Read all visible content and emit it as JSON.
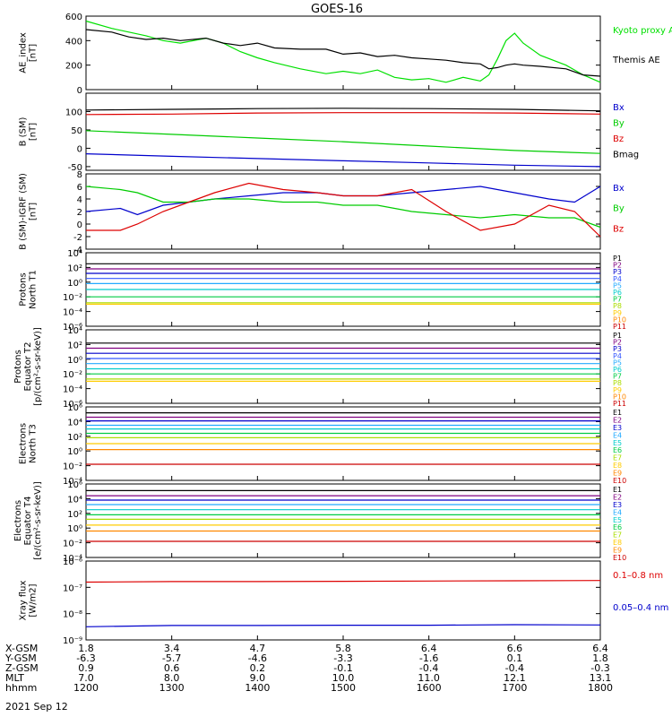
{
  "title": "GOES-16",
  "date": "2021 Sep 12",
  "orbit_table": {
    "row_labels": [
      "X-GSM",
      "Y-GSM",
      "Z-GSM",
      "MLT",
      "hhmm"
    ],
    "columns": [
      [
        "1.8",
        "-6.3",
        "0.9",
        "7.0",
        "1200"
      ],
      [
        "3.4",
        "-5.7",
        "0.6",
        "8.0",
        "1300"
      ],
      [
        "4.7",
        "-4.6",
        "0.2",
        "9.0",
        "1400"
      ],
      [
        "5.8",
        "-3.3",
        "-0.1",
        "10.0",
        "1500"
      ],
      [
        "6.4",
        "-1.6",
        "-0.4",
        "11.0",
        "1600"
      ],
      [
        "6.6",
        "0.1",
        "-0.4",
        "12.1",
        "1700"
      ],
      [
        "6.4",
        "1.8",
        "-0.3",
        "13.1",
        "1800"
      ]
    ]
  },
  "chart_data": [
    {
      "type": "line",
      "panel": "AE index",
      "ylabel": [
        "AE_index",
        "[nT]"
      ],
      "ylim": [
        0,
        600
      ],
      "yticks": [
        "0",
        "200",
        "400",
        "600"
      ],
      "x_range_hours": [
        12,
        18
      ],
      "series": [
        {
          "name": "Kyoto proxy AE",
          "color": "#00e000",
          "x": [
            12.0,
            12.3,
            12.5,
            12.7,
            12.9,
            13.1,
            13.4,
            13.6,
            13.8,
            14.0,
            14.2,
            14.5,
            14.8,
            15.0,
            15.2,
            15.4,
            15.6,
            15.8,
            16.0,
            16.2,
            16.4,
            16.6,
            16.7,
            16.8,
            16.9,
            17.0,
            17.1,
            17.3,
            17.6,
            17.8,
            18.0
          ],
          "y": [
            560,
            500,
            470,
            440,
            400,
            380,
            420,
            380,
            310,
            260,
            220,
            170,
            130,
            150,
            130,
            160,
            100,
            80,
            90,
            60,
            100,
            70,
            120,
            250,
            400,
            460,
            380,
            280,
            200,
            120,
            60
          ]
        },
        {
          "name": "Themis AE",
          "color": "#000000",
          "x": [
            12.0,
            12.3,
            12.5,
            12.7,
            12.9,
            13.1,
            13.4,
            13.6,
            13.8,
            14.0,
            14.2,
            14.5,
            14.8,
            15.0,
            15.2,
            15.4,
            15.6,
            15.8,
            16.0,
            16.2,
            16.4,
            16.6,
            16.7,
            16.8,
            16.9,
            17.0,
            17.1,
            17.3,
            17.6,
            17.8,
            18.0
          ],
          "y": [
            490,
            470,
            430,
            410,
            420,
            400,
            420,
            380,
            360,
            380,
            340,
            330,
            330,
            290,
            300,
            270,
            280,
            260,
            250,
            240,
            220,
            210,
            170,
            180,
            200,
            210,
            200,
            190,
            170,
            120,
            110
          ]
        }
      ]
    },
    {
      "type": "line",
      "panel": "B (SM)",
      "ylabel": [
        "B (SM)",
        "[nT]"
      ],
      "ylim": [
        -60,
        150
      ],
      "yticks": [
        "-50",
        "0",
        "50",
        "100"
      ],
      "x_range_hours": [
        12,
        18
      ],
      "series": [
        {
          "name": "Bx",
          "color": "#0000cc",
          "x": [
            12,
            13,
            14,
            15,
            16,
            17,
            18
          ],
          "y": [
            -15,
            -22,
            -28,
            -34,
            -40,
            -46,
            -50
          ]
        },
        {
          "name": "By",
          "color": "#00cc00",
          "x": [
            12,
            13,
            14,
            15,
            16,
            17,
            18
          ],
          "y": [
            48,
            38,
            28,
            18,
            6,
            -6,
            -14
          ]
        },
        {
          "name": "Bz",
          "color": "#dd0000",
          "x": [
            12,
            13,
            14,
            15,
            16,
            17,
            18
          ],
          "y": [
            92,
            93,
            96,
            97,
            97,
            96,
            93
          ]
        },
        {
          "name": "Bmag",
          "color": "#000000",
          "x": [
            12,
            13,
            14,
            15,
            16,
            17,
            18
          ],
          "y": [
            104,
            106,
            108,
            109,
            108,
            106,
            102
          ]
        }
      ]
    },
    {
      "type": "line",
      "panel": "B (SM)-IGRF (SM)",
      "ylabel": [
        "B (SM)-IGRF (SM)",
        "[nT]"
      ],
      "ylim": [
        -4,
        8
      ],
      "yticks": [
        "-4",
        "-2",
        "0",
        "2",
        "4",
        "6",
        "8"
      ],
      "x_range_hours": [
        12,
        18
      ],
      "series": [
        {
          "name": "Bx",
          "color": "#0000cc",
          "x": [
            12.0,
            12.4,
            12.6,
            12.9,
            13.2,
            13.5,
            13.9,
            14.3,
            14.7,
            15.0,
            15.4,
            15.8,
            16.2,
            16.6,
            17.0,
            17.4,
            17.7,
            18.0
          ],
          "y": [
            2,
            2.5,
            1.5,
            3,
            3.5,
            4,
            4.5,
            5,
            5,
            4.5,
            4.5,
            5,
            5.5,
            6,
            5,
            4,
            3.5,
            6
          ]
        },
        {
          "name": "By",
          "color": "#00cc00",
          "x": [
            12.0,
            12.4,
            12.6,
            12.9,
            13.2,
            13.5,
            13.9,
            14.3,
            14.7,
            15.0,
            15.4,
            15.8,
            16.2,
            16.6,
            17.0,
            17.4,
            17.7,
            18.0
          ],
          "y": [
            6,
            5.5,
            5,
            3.5,
            3.5,
            4,
            4,
            3.5,
            3.5,
            3,
            3,
            2,
            1.5,
            1,
            1.5,
            1,
            1,
            -0.5
          ]
        },
        {
          "name": "Bz",
          "color": "#dd0000",
          "x": [
            12.0,
            12.4,
            12.6,
            12.9,
            13.2,
            13.5,
            13.9,
            14.3,
            14.7,
            15.0,
            15.4,
            15.8,
            16.2,
            16.6,
            17.0,
            17.4,
            17.7,
            18.0
          ],
          "y": [
            -1,
            -1,
            0,
            2,
            3.5,
            5,
            6.5,
            5.5,
            5,
            4.5,
            4.5,
            5.5,
            2,
            -1,
            0,
            3,
            2,
            -2
          ]
        }
      ]
    },
    {
      "type": "line",
      "panel": "Protons North T1",
      "ylabel": [
        "Protons",
        "North T1"
      ],
      "yscale": "log",
      "ylim": [
        1e-06,
        10000.0
      ],
      "yticks": [
        "10⁻⁶",
        "10⁻⁴",
        "10⁻²",
        "10⁰",
        "10²",
        "10⁴"
      ],
      "x_range_hours": [
        12,
        18
      ],
      "series": [
        {
          "name": "P1",
          "color": "#000000",
          "y_log10": [
            2.5,
            2.5,
            2.5,
            2.5,
            2.5,
            2.5,
            2.5
          ]
        },
        {
          "name": "P2",
          "color": "#800080",
          "y_log10": [
            1.8,
            1.8,
            1.8,
            1.8,
            1.8,
            1.8,
            1.8
          ]
        },
        {
          "name": "P3",
          "color": "#0000cc",
          "y_log10": [
            1.2,
            1.2,
            1.2,
            1.2,
            1.2,
            1.2,
            1.2
          ]
        },
        {
          "name": "P4",
          "color": "#3355ff",
          "y_log10": [
            0.5,
            0.5,
            0.5,
            0.5,
            0.5,
            0.5,
            0.5
          ]
        },
        {
          "name": "P5",
          "color": "#22aaff",
          "y_log10": [
            -0.2,
            -0.2,
            -0.2,
            -0.2,
            -0.2,
            -0.2,
            -0.2
          ]
        },
        {
          "name": "P6",
          "color": "#00cccc",
          "y_log10": [
            -1.0,
            -1.0,
            -1.0,
            -1.0,
            -1.0,
            -1.0,
            -1.0
          ]
        },
        {
          "name": "P7",
          "color": "#00cc44",
          "y_log10": [
            -2.0,
            -2.0,
            -2.0,
            -2.0,
            -2.0,
            -2.0,
            -2.0
          ]
        },
        {
          "name": "P8",
          "color": "#aadd00",
          "y_log10": [
            -2.8,
            -2.8,
            -2.8,
            -2.8,
            -2.8,
            -2.8,
            -2.8
          ]
        },
        {
          "name": "P9",
          "color": "#ffcc00",
          "y_log10": [
            -3.0,
            -3.0,
            -3.0,
            -3.0,
            -3.0,
            -3.0,
            -3.0
          ]
        },
        {
          "name": "P10",
          "color": "#ff8800",
          "y_log10": []
        },
        {
          "name": "P11",
          "color": "#cc0000",
          "y_log10": []
        }
      ]
    },
    {
      "type": "line",
      "panel": "Protons Equator T2",
      "ylabel": [
        "Protons",
        "Equator T2",
        "[p/(cm²-s-sr-keV)]"
      ],
      "yscale": "log",
      "ylim": [
        1e-06,
        10000.0
      ],
      "yticks": [
        "10⁻⁶",
        "10⁻⁴",
        "10⁻²",
        "10⁰",
        "10²",
        "10⁴"
      ],
      "x_range_hours": [
        12,
        18
      ],
      "series": [
        {
          "name": "P1",
          "color": "#000000",
          "y_log10": [
            2.2,
            2.2,
            2.2,
            2.2,
            2.2,
            2.2,
            2.2
          ]
        },
        {
          "name": "P2",
          "color": "#800080",
          "y_log10": [
            1.5,
            1.5,
            1.5,
            1.5,
            1.5,
            1.5,
            1.5
          ]
        },
        {
          "name": "P3",
          "color": "#0000cc",
          "y_log10": [
            0.8,
            0.8,
            0.8,
            0.8,
            0.8,
            0.8,
            0.8
          ]
        },
        {
          "name": "P4",
          "color": "#3355ff",
          "y_log10": [
            0.1,
            0.1,
            0.1,
            0.1,
            0.1,
            0.1,
            0.1
          ]
        },
        {
          "name": "P5",
          "color": "#22aaff",
          "y_log10": [
            -0.6,
            -0.6,
            -0.6,
            -0.6,
            -0.6,
            -0.6,
            -0.6
          ]
        },
        {
          "name": "P6",
          "color": "#00cccc",
          "y_log10": [
            -1.3,
            -1.3,
            -1.3,
            -1.3,
            -1.3,
            -1.3,
            -1.3
          ]
        },
        {
          "name": "P7",
          "color": "#00cc44",
          "y_log10": [
            -2.0,
            -2.0,
            -2.0,
            -2.0,
            -2.0,
            -2.0,
            -2.0
          ]
        },
        {
          "name": "P8",
          "color": "#aadd00",
          "y_log10": [
            -2.7,
            -2.7,
            -2.7,
            -2.7,
            -2.7,
            -2.7,
            -2.7
          ]
        },
        {
          "name": "P9",
          "color": "#ffcc00",
          "y_log10": [
            -3.0,
            -3.0,
            -3.0,
            -3.0,
            -3.0,
            -3.0,
            -3.0
          ]
        },
        {
          "name": "P10",
          "color": "#ff8800",
          "y_log10": []
        },
        {
          "name": "P11",
          "color": "#cc0000",
          "y_log10": []
        }
      ]
    },
    {
      "type": "line",
      "panel": "Electrons North T3",
      "ylabel": [
        "Electrons",
        "North T3"
      ],
      "yscale": "log",
      "ylim": [
        0.0001,
        1000000.0
      ],
      "yticks": [
        "10⁻⁴",
        "10⁻²",
        "10⁰",
        "10²",
        "10⁴",
        "10⁶"
      ],
      "x_range_hours": [
        12,
        18
      ],
      "series": [
        {
          "name": "E1",
          "color": "#000000",
          "y_log10": [
            5.2,
            5.2,
            5.2,
            5.2,
            5.2,
            5.2,
            5.2
          ]
        },
        {
          "name": "E2",
          "color": "#800080",
          "y_log10": [
            4.6,
            4.6,
            4.6,
            4.6,
            4.6,
            4.6,
            4.6
          ]
        },
        {
          "name": "E3",
          "color": "#0000cc",
          "y_log10": [
            4.1,
            4.1,
            4.1,
            4.1,
            4.1,
            4.1,
            4.1
          ]
        },
        {
          "name": "E4",
          "color": "#22aaff",
          "y_log10": [
            3.5,
            3.5,
            3.5,
            3.5,
            3.5,
            3.5,
            3.5
          ]
        },
        {
          "name": "E5",
          "color": "#00cccc",
          "y_log10": [
            3.0,
            3.0,
            3.0,
            3.0,
            3.0,
            3.0,
            3.0
          ]
        },
        {
          "name": "E6",
          "color": "#00cc44",
          "y_log10": [
            2.4,
            2.4,
            2.4,
            2.4,
            2.4,
            2.4,
            2.4
          ]
        },
        {
          "name": "E7",
          "color": "#aadd00",
          "y_log10": [
            1.8,
            1.8,
            1.8,
            1.8,
            1.8,
            1.8,
            1.8
          ]
        },
        {
          "name": "E8",
          "color": "#ffcc00",
          "y_log10": [
            1.0,
            1.0,
            1.0,
            1.0,
            1.0,
            1.0,
            1.0
          ]
        },
        {
          "name": "E9",
          "color": "#ff8800",
          "y_log10": [
            0.2,
            0.2,
            0.2,
            0.2,
            0.2,
            0.2,
            0.2
          ]
        },
        {
          "name": "E10",
          "color": "#cc0000",
          "y_log10": [
            -1.8,
            -1.8,
            -1.8,
            -1.8,
            -1.8,
            -1.8,
            -1.8
          ]
        }
      ]
    },
    {
      "type": "line",
      "panel": "Electrons Equator T4",
      "ylabel": [
        "Electrons",
        "Equator T4",
        "[e/(cm²-s-sr-keV)]"
      ],
      "yscale": "log",
      "ylim": [
        0.0001,
        1000000.0
      ],
      "yticks": [
        "10⁻⁴",
        "10⁻²",
        "10⁰",
        "10²",
        "10⁴",
        "10⁶"
      ],
      "x_range_hours": [
        12,
        18
      ],
      "series": [
        {
          "name": "E1",
          "color": "#000000",
          "y_log10": [
            5.1,
            5.1,
            5.1,
            5.1,
            5.1,
            5.1,
            5.1
          ]
        },
        {
          "name": "E2",
          "color": "#800080",
          "y_log10": [
            4.4,
            4.4,
            4.4,
            4.4,
            4.4,
            4.4,
            4.4
          ]
        },
        {
          "name": "E3",
          "color": "#0000cc",
          "y_log10": [
            3.8,
            3.8,
            3.8,
            3.8,
            3.8,
            3.8,
            3.8
          ]
        },
        {
          "name": "E4",
          "color": "#22aaff",
          "y_log10": [
            3.2,
            3.2,
            3.2,
            3.2,
            3.2,
            3.2,
            3.2
          ]
        },
        {
          "name": "E5",
          "color": "#00cccc",
          "y_log10": [
            2.5,
            2.5,
            2.5,
            2.5,
            2.5,
            2.5,
            2.5
          ]
        },
        {
          "name": "E6",
          "color": "#00cc44",
          "y_log10": [
            1.8,
            1.8,
            1.8,
            1.8,
            1.8,
            1.8,
            1.8
          ]
        },
        {
          "name": "E7",
          "color": "#aadd00",
          "y_log10": [
            1.2,
            1.2,
            1.2,
            1.2,
            1.2,
            1.2,
            1.2
          ]
        },
        {
          "name": "E8",
          "color": "#ffcc00",
          "y_log10": [
            0.4,
            0.4,
            0.4,
            0.4,
            0.4,
            0.4,
            0.4
          ]
        },
        {
          "name": "E9",
          "color": "#ff8800",
          "y_log10": [
            -0.4,
            -0.4,
            -0.4,
            -0.4,
            -0.4,
            -0.4,
            -0.4
          ]
        },
        {
          "name": "E10",
          "color": "#cc0000",
          "y_log10": [
            -1.8,
            -1.8,
            -1.8,
            -1.8,
            -1.8,
            -1.8,
            -1.8
          ]
        }
      ]
    },
    {
      "type": "line",
      "panel": "Xray flux",
      "ylabel": [
        "Xray flux",
        "[W/m2]"
      ],
      "yscale": "log",
      "ylim": [
        1e-09,
        1e-06
      ],
      "yticks": [
        "10⁻⁹",
        "10⁻⁸",
        "10⁻⁷",
        "10⁻⁶"
      ],
      "x_range_hours": [
        12,
        18
      ],
      "series": [
        {
          "name": "0.1–0.8 nm",
          "color": "#dd0000",
          "y_log10": [
            -6.8,
            -6.78,
            -6.78,
            -6.77,
            -6.76,
            -6.75,
            -6.74
          ]
        },
        {
          "name": "0.05–0.4 nm",
          "color": "#0000cc",
          "y_log10": [
            -8.5,
            -8.45,
            -8.45,
            -8.44,
            -8.44,
            -8.42,
            -8.43
          ]
        }
      ]
    }
  ]
}
